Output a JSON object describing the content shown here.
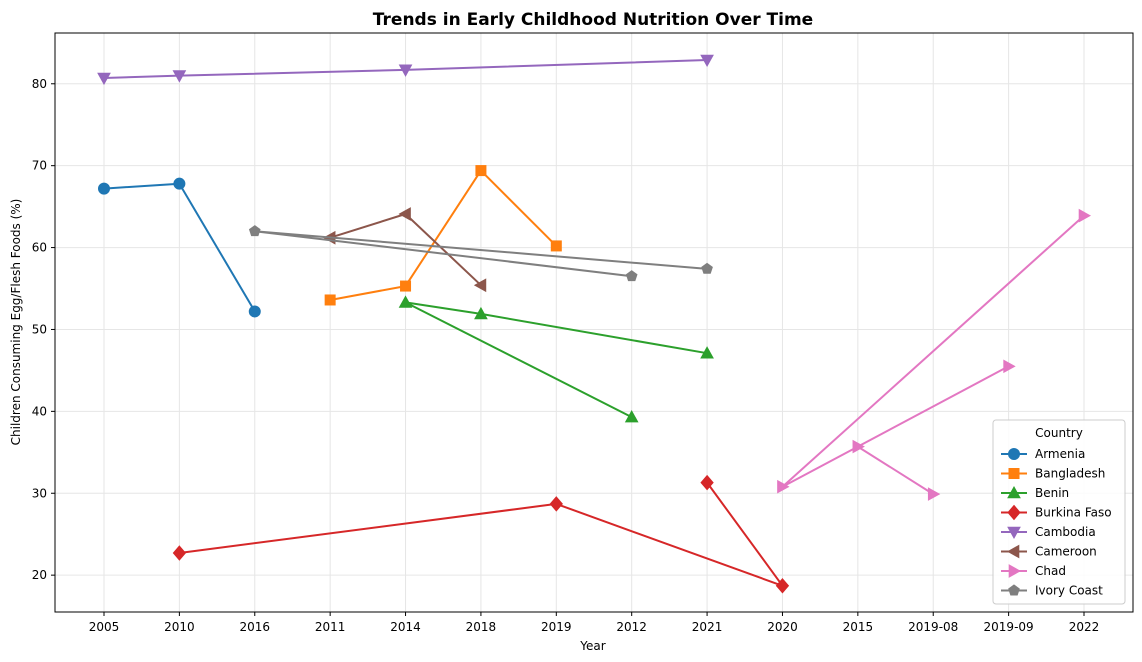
{
  "chart_data": {
    "type": "line",
    "title": "Trends in Early Childhood Nutrition Over Time",
    "xlabel": "Year",
    "ylabel": "Children Consuming Egg/Flesh Foods (%)",
    "categories": [
      "2005",
      "2010",
      "2016",
      "2011",
      "2014",
      "2018",
      "2019",
      "2012",
      "2021",
      "2020",
      "2015",
      "2019-08",
      "2019-09",
      "2022"
    ],
    "ylim": [
      15.5,
      86.2
    ],
    "yticks": [
      "20",
      "30",
      "40",
      "50",
      "60",
      "70",
      "80"
    ],
    "grid": true,
    "legend": {
      "title": "Country",
      "placement": "bottom-right"
    },
    "series": [
      {
        "name": "Armenia",
        "color": "#1f77b4",
        "marker": "circle",
        "points": [
          {
            "x": "2005",
            "y": 67.2
          },
          {
            "x": "2010",
            "y": 67.8
          },
          {
            "x": "2016",
            "y": 52.2
          }
        ]
      },
      {
        "name": "Bangladesh",
        "color": "#ff7f0e",
        "marker": "square",
        "points": [
          {
            "x": "2011",
            "y": 53.6
          },
          {
            "x": "2014",
            "y": 55.3
          },
          {
            "x": "2018",
            "y": 69.4
          },
          {
            "x": "2019",
            "y": 60.2
          }
        ]
      },
      {
        "name": "Benin",
        "color": "#2ca02c",
        "marker": "triangle-up",
        "points": [
          {
            "x": "2012",
            "y": 39.3
          },
          {
            "x": "2014",
            "y": 53.3
          },
          {
            "x": "2018",
            "y": 51.9
          },
          {
            "x": "2021",
            "y": 47.1
          }
        ]
      },
      {
        "name": "Burkina Faso",
        "color": "#d62728",
        "marker": "diamond",
        "points": [
          {
            "x": "2010",
            "y": 22.7
          },
          {
            "x": "2019",
            "y": 28.7
          },
          {
            "x": "2020",
            "y": 18.7
          },
          {
            "x": "2021",
            "y": 31.3
          }
        ]
      },
      {
        "name": "Cambodia",
        "color": "#9467bd",
        "marker": "triangle-down",
        "points": [
          {
            "x": "2005",
            "y": 80.7
          },
          {
            "x": "2010",
            "y": 81.0
          },
          {
            "x": "2014",
            "y": 81.7
          },
          {
            "x": "2021",
            "y": 82.9
          }
        ]
      },
      {
        "name": "Cameroon",
        "color": "#8c564b",
        "marker": "triangle-left",
        "points": [
          {
            "x": "2011",
            "y": 61.2
          },
          {
            "x": "2014",
            "y": 64.1
          },
          {
            "x": "2018",
            "y": 55.4
          }
        ]
      },
      {
        "name": "Chad",
        "color": "#e377c2",
        "marker": "triangle-right",
        "points": [
          {
            "x": "2019-08",
            "y": 29.9
          },
          {
            "x": "2015",
            "y": 35.7
          },
          {
            "x": "2019-09",
            "y": 45.5
          },
          {
            "x": "2020",
            "y": 30.8
          },
          {
            "x": "2022",
            "y": 63.9
          }
        ]
      },
      {
        "name": "Ivory Coast",
        "color": "#7f7f7f",
        "marker": "pentagon",
        "points": [
          {
            "x": "2012",
            "y": 56.5
          },
          {
            "x": "2016",
            "y": 62.0
          },
          {
            "x": "2021",
            "y": 57.4
          }
        ]
      }
    ]
  }
}
